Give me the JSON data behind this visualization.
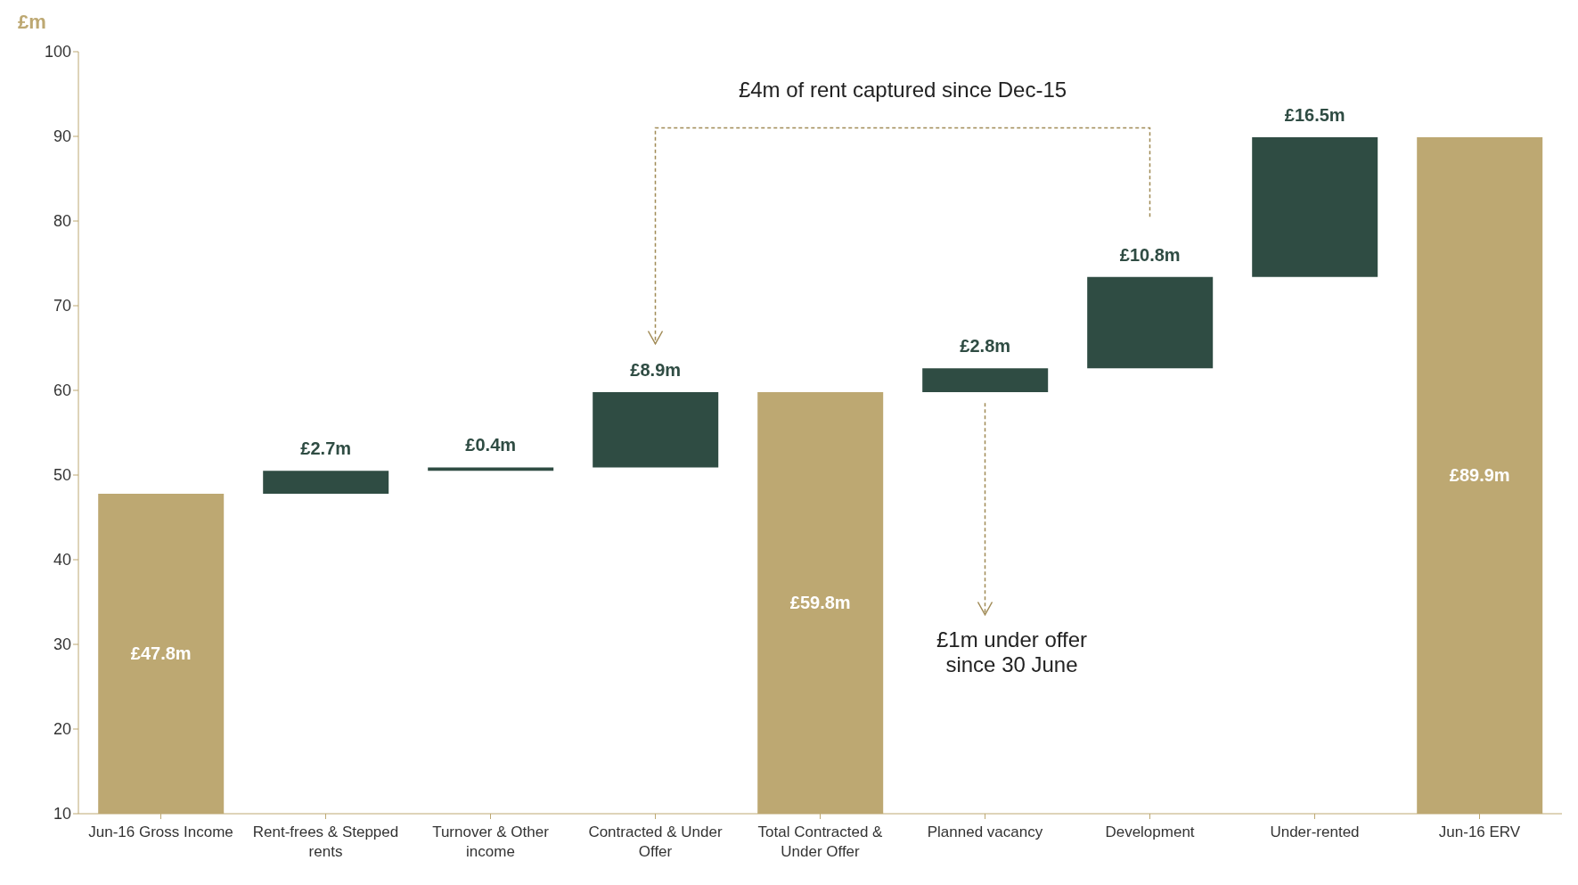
{
  "chart_data": {
    "type": "bar",
    "ylabel": "£m",
    "categories": [
      "Jun-16 Gross Income",
      "Rent-frees & Stepped rents",
      "Turnover & Other income",
      "Contracted & Under Offer",
      "Total Contracted & Under Offer",
      "Planned vacancy",
      "Development",
      "Under-rented",
      "Jun-16 ERV"
    ],
    "values": [
      47.8,
      2.7,
      0.4,
      8.9,
      59.8,
      2.8,
      10.8,
      16.5,
      89.9
    ],
    "base": [
      null,
      47.8,
      50.5,
      50.9,
      null,
      59.8,
      62.6,
      73.4,
      null
    ],
    "colors": [
      "#bda872",
      "#2f4c43",
      "#2f4c43",
      "#2f4c43",
      "#bda872",
      "#2f4c43",
      "#2f4c43",
      "#2f4c43",
      "#bda872"
    ],
    "value_labels": [
      "£47.8m",
      "£2.7m",
      "£0.4m",
      "£8.9m",
      "£59.8m",
      "£2.8m",
      "£10.8m",
      "£16.5m",
      "£89.9m"
    ],
    "ylim": [
      10,
      100
    ],
    "yticks": [
      10,
      20,
      30,
      40,
      50,
      60,
      70,
      80,
      90,
      100
    ],
    "grid": false,
    "legend": false,
    "annotations": [
      "£4m of rent captured since Dec-15",
      "£1m under offer since 30 June"
    ]
  }
}
